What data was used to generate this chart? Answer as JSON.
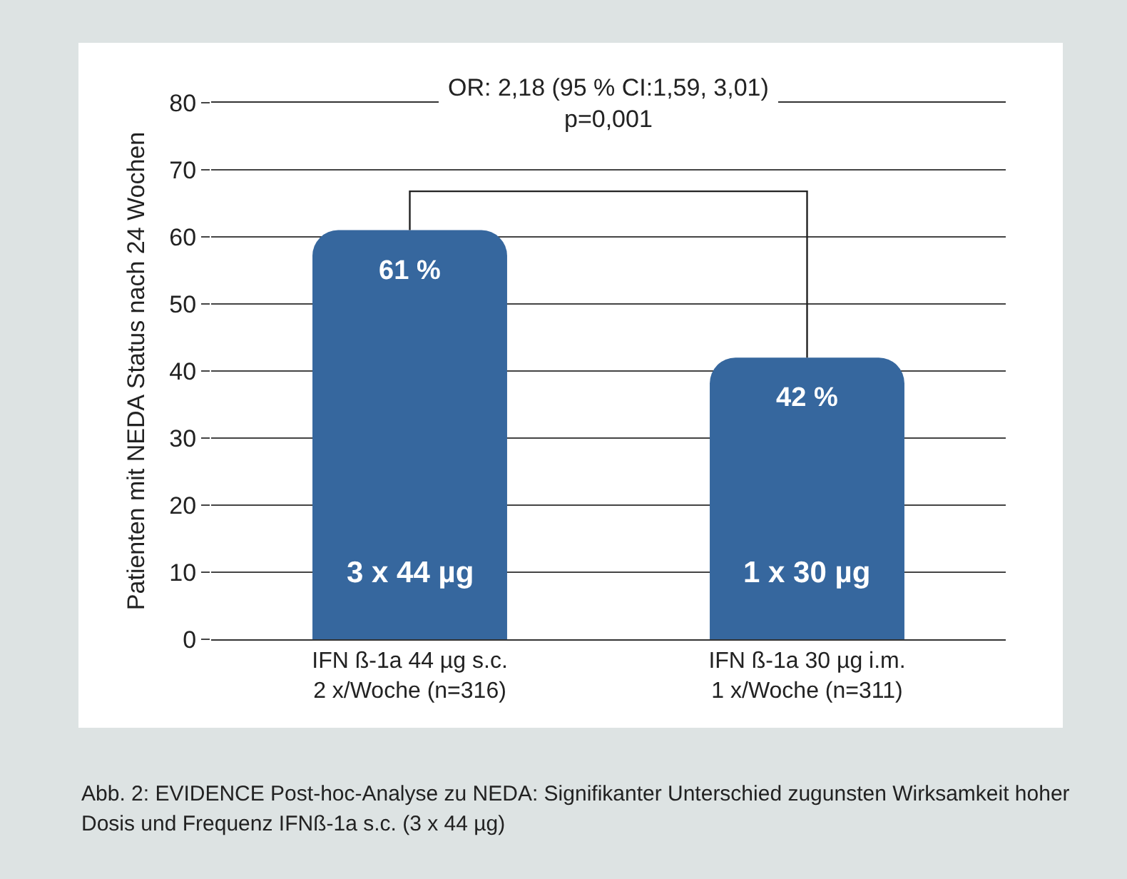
{
  "chart_data": {
    "type": "bar",
    "ylabel": "Patienten mit NEDA Status nach 24 Wochen",
    "categories": [
      "IFN ß-1a 44 µg s.c.\n2 x/Woche (n=316)",
      "IFN ß-1a 30 µg i.m.\n1 x/Woche (n=311)"
    ],
    "values": [
      61,
      42
    ],
    "value_labels": [
      "61 %",
      "42 %"
    ],
    "color": "#36679e",
    "ylim": [
      0,
      80
    ],
    "yticks": [
      0,
      10,
      20,
      30,
      40,
      50,
      60,
      70,
      80
    ],
    "grid": "y",
    "annotations": [
      "OR: 2,18 (95 % CI:1,59, 3,01)",
      "p=0,001",
      "3 x 44 µg",
      "1 x 30 µg",
      "Abb. 2: EVIDENCE Post-hoc-Analyse zu NEDA: Signifikanter Unterschied zugunsten Wirksamkeit hoher Dosis und Frequenz IFNß-1a s.c. (3 x 44 µg)"
    ]
  }
}
